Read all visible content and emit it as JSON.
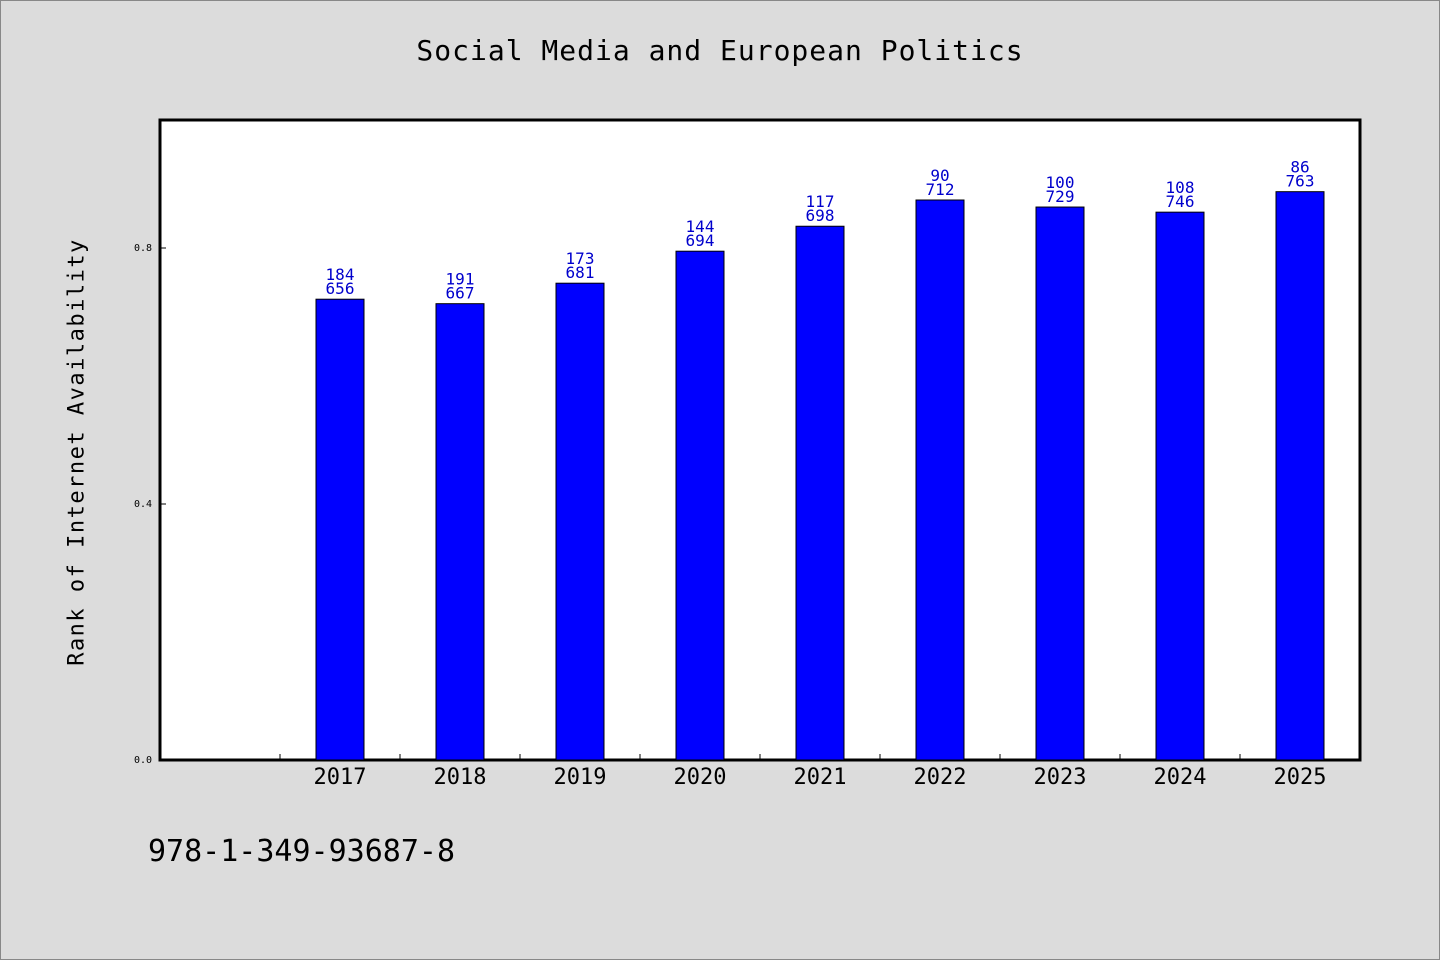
{
  "chart_data": {
    "type": "bar",
    "title": "Social Media and European Politics",
    "xlabel": "",
    "ylabel": "Rank of Internet Availability",
    "categories": [
      "2017",
      "2018",
      "2019",
      "2020",
      "2021",
      "2022",
      "2023",
      "2024",
      "2025"
    ],
    "values": [
      0.72,
      0.713,
      0.745,
      0.795,
      0.834,
      0.875,
      0.864,
      0.856,
      0.888
    ],
    "bar_labels": [
      [
        "184",
        "656"
      ],
      [
        "191",
        "667"
      ],
      [
        "173",
        "681"
      ],
      [
        "144",
        "694"
      ],
      [
        "117",
        "698"
      ],
      [
        "90",
        "712"
      ],
      [
        "100",
        "729"
      ],
      [
        "108",
        "746"
      ],
      [
        "86",
        "763"
      ]
    ],
    "yticks": [
      "0.0",
      "0.4",
      "0.8"
    ],
    "ylim": [
      0,
      1.0
    ],
    "grid": false,
    "legend": "none",
    "colors": {
      "bar": "#0000ff",
      "label": "#0000cc",
      "plot_bg": "#ffffff",
      "page_bg": "#dcdcdc"
    }
  },
  "footer": {
    "code": "978-1-349-93687-8"
  }
}
